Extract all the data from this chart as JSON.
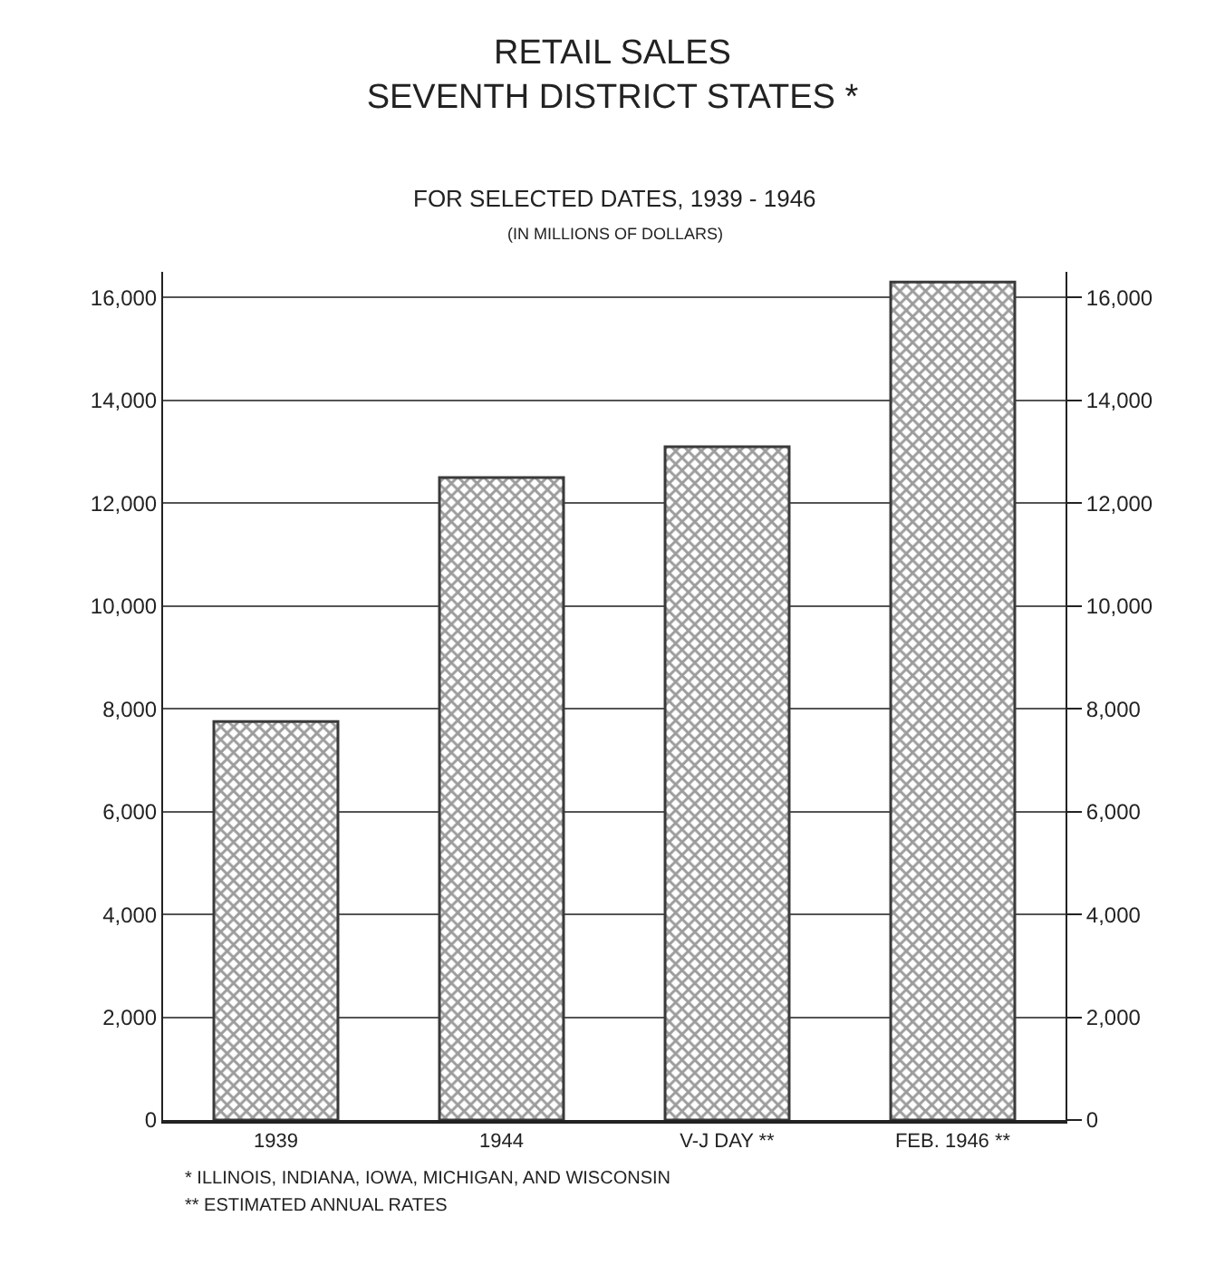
{
  "chart_data": {
    "type": "bar",
    "title": "RETAIL SALES\nSEVENTH DISTRICT STATES *",
    "subtitle": "FOR SELECTED DATES, 1939 - 1946",
    "categories": [
      "1939",
      "1944",
      "V-J DAY **",
      "FEB. 1946 **"
    ],
    "values": [
      7750,
      12500,
      13100,
      16300
    ],
    "color": "#3a3a3a",
    "ylim": [
      0,
      16500
    ],
    "yticks": [
      {
        "value": 0,
        "label": "0"
      },
      {
        "value": 2000,
        "label": "2,000"
      },
      {
        "value": 4000,
        "label": "4,000"
      },
      {
        "value": 6000,
        "label": "6,000"
      },
      {
        "value": 8000,
        "label": "8,000"
      },
      {
        "value": 10000,
        "label": "10,000"
      },
      {
        "value": 12000,
        "label": "12,000"
      },
      {
        "value": 14000,
        "label": "14,000"
      },
      {
        "value": 16000,
        "label": "16,000"
      }
    ],
    "y2lim": [
      0,
      16500
    ],
    "y2ticks": [
      {
        "value": 0,
        "label": "0"
      },
      {
        "value": 2000,
        "label": "2,000"
      },
      {
        "value": 4000,
        "label": "4,000"
      },
      {
        "value": 6000,
        "label": "6,000"
      },
      {
        "value": 8000,
        "label": "8,000"
      },
      {
        "value": 10000,
        "label": "10,000"
      },
      {
        "value": 12000,
        "label": "12,000"
      },
      {
        "value": 14000,
        "label": "14,000"
      },
      {
        "value": 16000,
        "label": "16,000"
      }
    ],
    "grid": "y",
    "annotations": [
      "(IN MILLIONS OF DOLLARS)",
      "* ILLINOIS, INDIANA, IOWA, MICHIGAN, AND WISCONSIN",
      "** ESTIMATED ANNUAL RATES"
    ]
  }
}
